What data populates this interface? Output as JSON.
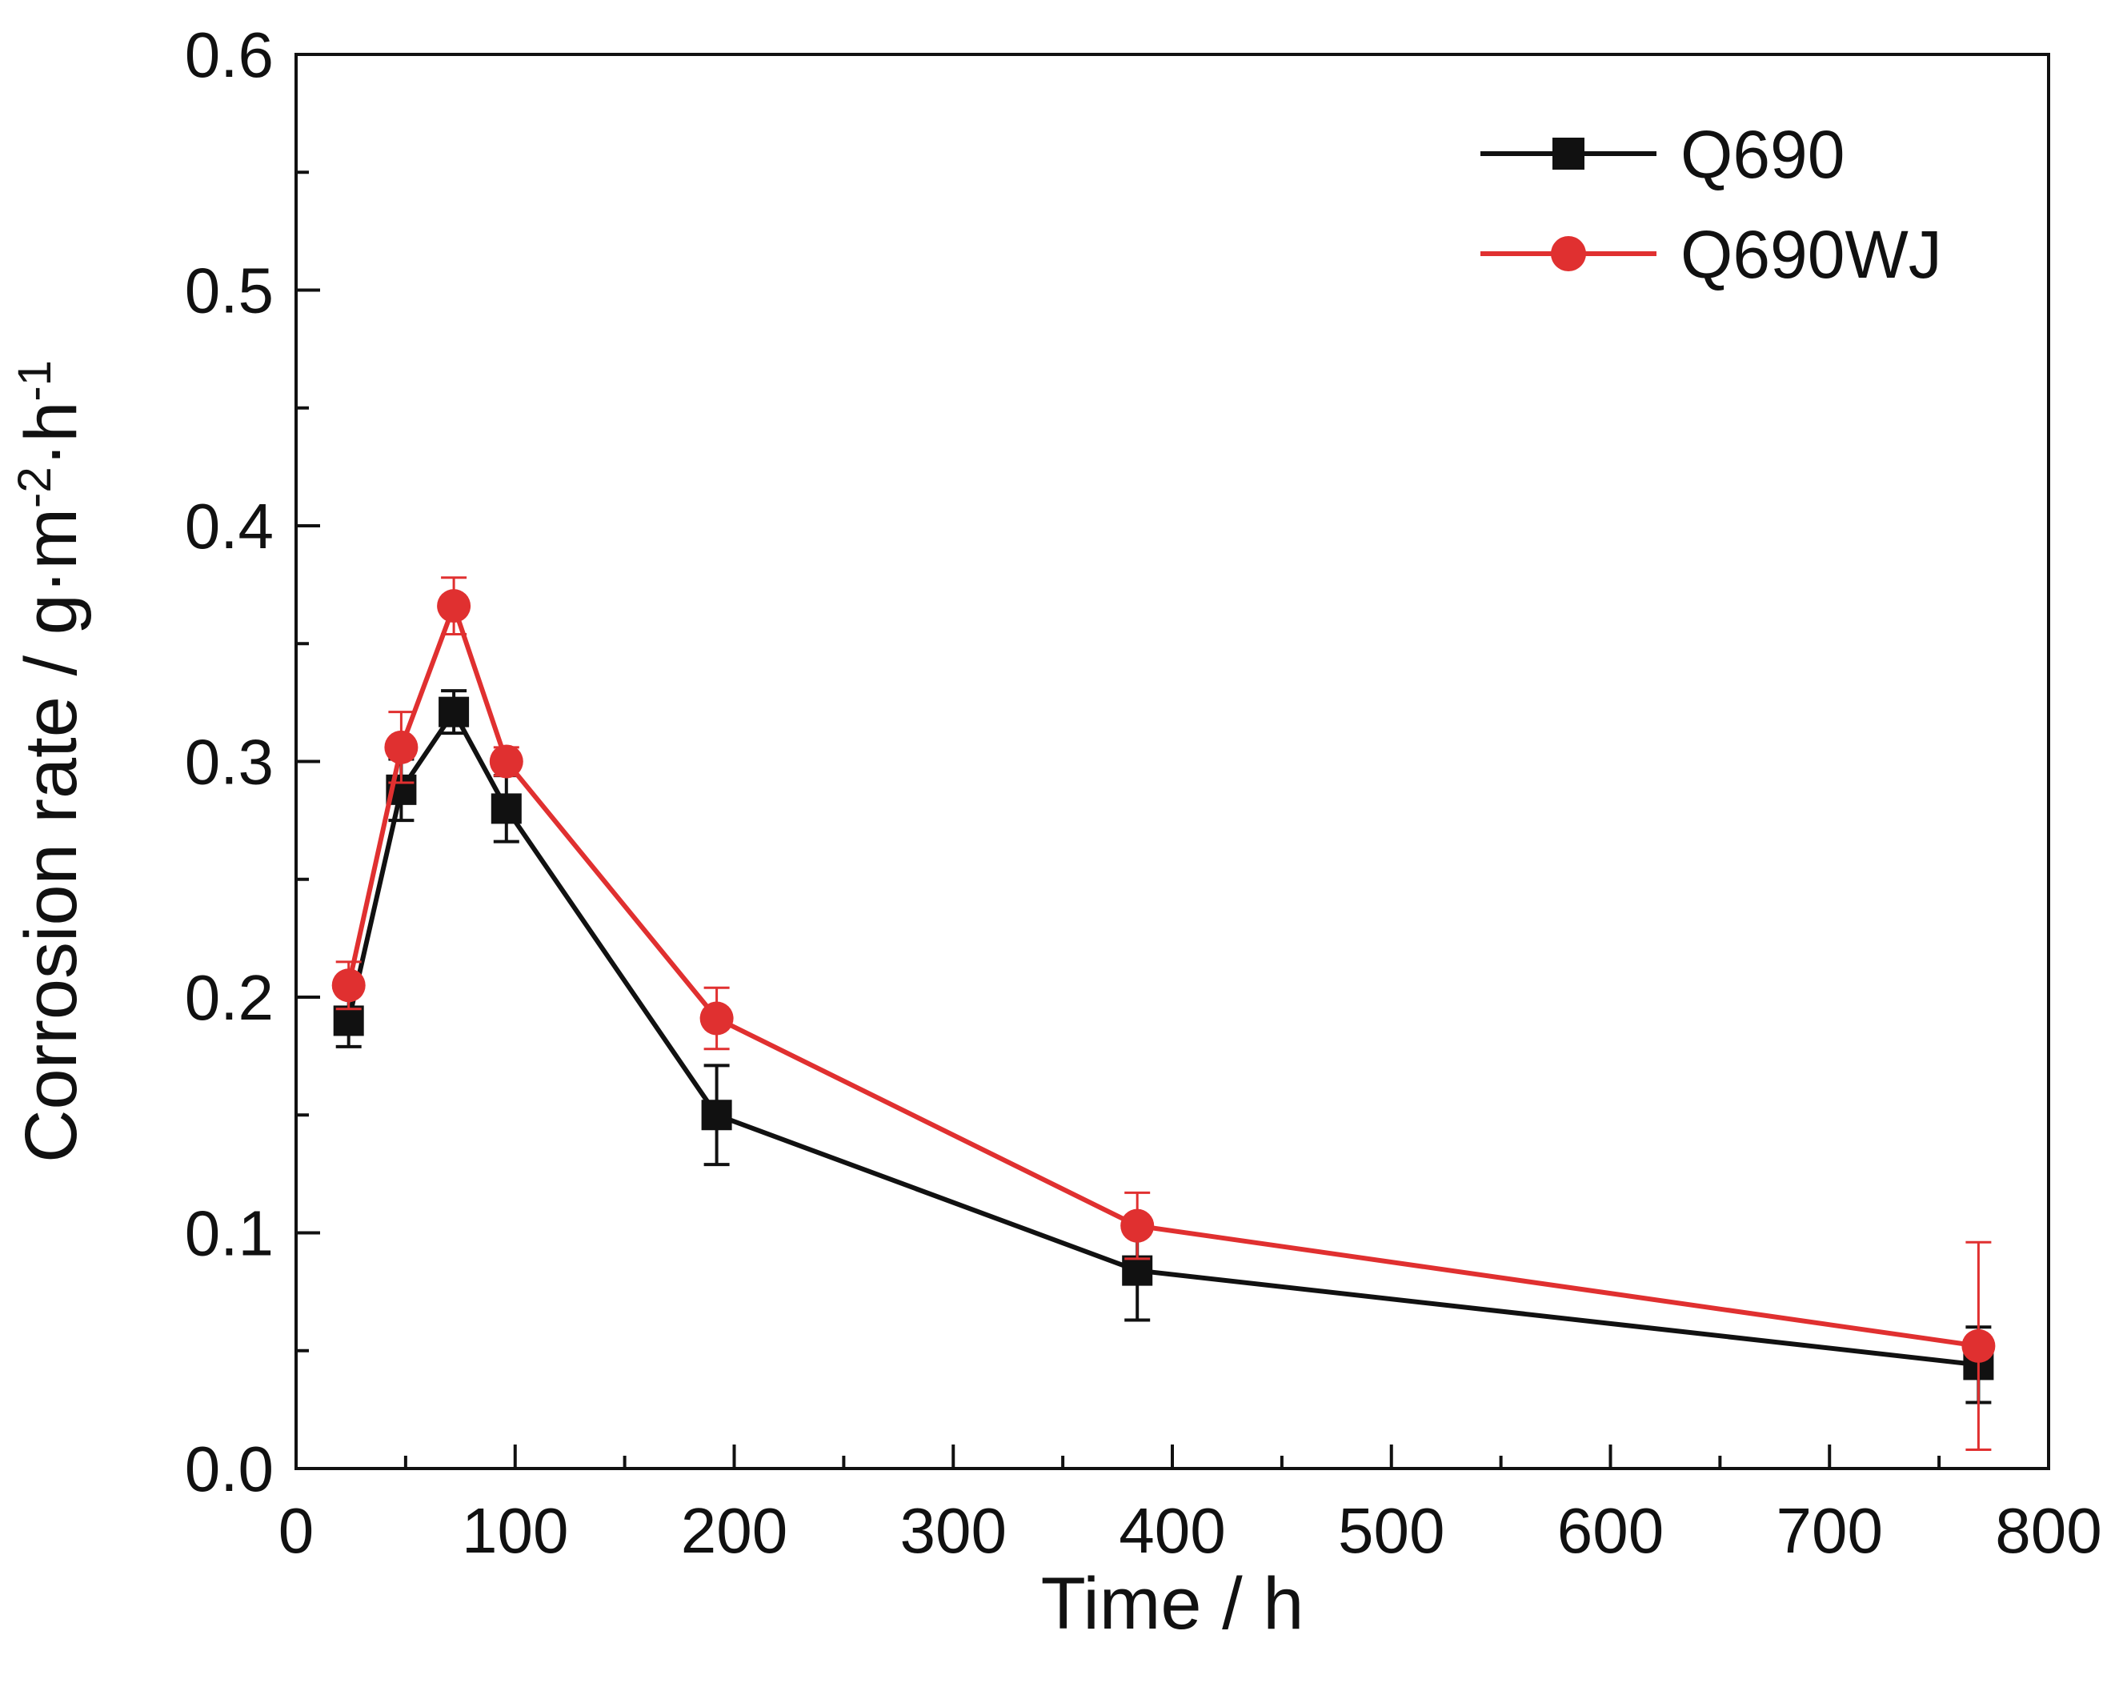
{
  "chart_data": {
    "type": "line",
    "xlabel": "Time / h",
    "ylabel": {
      "parts": [
        {
          "text": "Corrosion rate / g·m",
          "sup": false
        },
        {
          "text": "-2",
          "sup": true
        },
        {
          "text": "·h",
          "sup": false
        },
        {
          "text": "-1",
          "sup": true
        }
      ]
    },
    "xlim": [
      0,
      800
    ],
    "ylim": [
      0,
      0.6
    ],
    "xticks": [
      0,
      100,
      200,
      300,
      400,
      500,
      600,
      700,
      800
    ],
    "xtick_labels": [
      "0",
      "100",
      "200",
      "300",
      "400",
      "500",
      "600",
      "700",
      "800"
    ],
    "yticks": [
      0,
      0.1,
      0.2,
      0.3,
      0.4,
      0.5,
      0.6
    ],
    "ytick_labels": [
      "0.0",
      "0.1",
      "0.2",
      "0.3",
      "0.4",
      "0.5",
      "0.6"
    ],
    "grid": false,
    "legend_position": "top-right",
    "series": [
      {
        "name": "Q690",
        "color": "#111111",
        "marker": "square",
        "x": [
          24,
          48,
          72,
          96,
          192,
          384,
          768
        ],
        "y": [
          0.19,
          0.288,
          0.321,
          0.28,
          0.15,
          0.084,
          0.044
        ],
        "err": [
          0.011,
          0.013,
          0.009,
          0.014,
          0.021,
          0.021,
          0.016
        ]
      },
      {
        "name": "Q690WJ",
        "color": "#e03030",
        "marker": "circle",
        "x": [
          24,
          48,
          72,
          96,
          192,
          384,
          768
        ],
        "y": [
          0.205,
          0.306,
          0.366,
          0.3,
          0.191,
          0.103,
          0.052
        ],
        "err": [
          0.01,
          0.015,
          0.012,
          0.006,
          0.013,
          0.014,
          0.044
        ]
      }
    ]
  }
}
